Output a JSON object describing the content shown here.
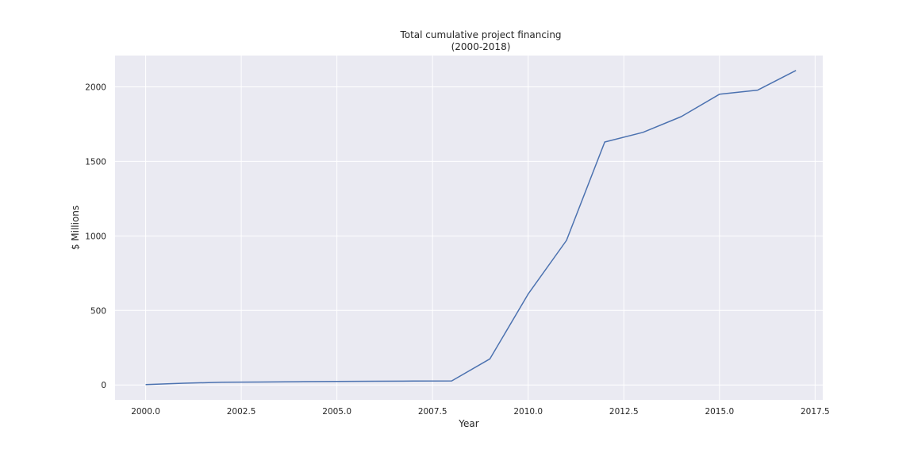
{
  "chart_data": {
    "type": "line",
    "title": "Total cumulative project financing",
    "subtitle": "(2000-2018)",
    "xlabel": "Year",
    "ylabel": "$ Millions",
    "xlim": [
      1999.2,
      2017.7
    ],
    "ylim": [
      -100,
      2210
    ],
    "xticks": [
      2000.0,
      2002.5,
      2005.0,
      2007.5,
      2010.0,
      2012.5,
      2015.0,
      2017.5
    ],
    "xtick_labels": [
      "2000.0",
      "2002.5",
      "2005.0",
      "2007.5",
      "2010.0",
      "2012.5",
      "2015.0",
      "2017.5"
    ],
    "yticks": [
      0,
      500,
      1000,
      1500,
      2000
    ],
    "ytick_labels": [
      "0",
      "500",
      "1000",
      "1500",
      "2000"
    ],
    "grid": true,
    "legend": "none",
    "series": [
      {
        "color": "#4c72b0",
        "x": [
          2000,
          2001,
          2002,
          2003,
          2004,
          2005,
          2006,
          2007,
          2008,
          2009,
          2010,
          2011,
          2012,
          2013,
          2014,
          2015,
          2016,
          2017
        ],
        "y": [
          2,
          12,
          18,
          20,
          22,
          24,
          25,
          26,
          27,
          175,
          610,
          970,
          1630,
          1695,
          1800,
          1950,
          1978,
          2110
        ]
      }
    ],
    "colors": {
      "plot_background": "#eaeaf2",
      "grid": "#ffffff",
      "line": "#4c72b0"
    }
  }
}
